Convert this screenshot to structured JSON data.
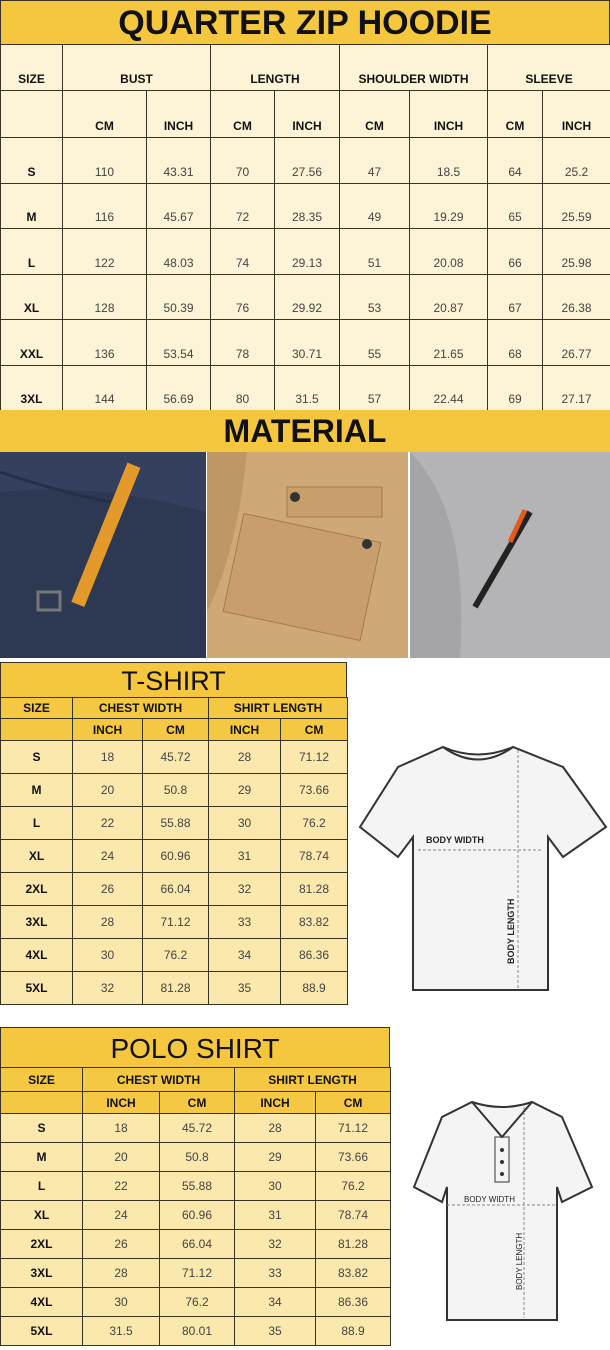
{
  "hoodie": {
    "title": "QUARTER ZIP HOODIE",
    "groups": [
      "SIZE",
      "BUST",
      "LENGTH",
      "SHOULDER WIDTH",
      "SLEEVE"
    ],
    "units": [
      "CM",
      "INCH",
      "CM",
      "INCH",
      "CM",
      "INCH",
      "CM",
      "INCH"
    ],
    "rows": [
      [
        "S",
        "110",
        "43.31",
        "70",
        "27.56",
        "47",
        "18.5",
        "64",
        "25.2"
      ],
      [
        "M",
        "116",
        "45.67",
        "72",
        "28.35",
        "49",
        "19.29",
        "65",
        "25.59"
      ],
      [
        "L",
        "122",
        "48.03",
        "74",
        "29.13",
        "51",
        "20.08",
        "66",
        "25.98"
      ],
      [
        "XL",
        "128",
        "50.39",
        "76",
        "29.92",
        "53",
        "20.87",
        "67",
        "26.38"
      ],
      [
        "XXL",
        "136",
        "53.54",
        "78",
        "30.71",
        "55",
        "21.65",
        "68",
        "26.77"
      ],
      [
        "3XL",
        "144",
        "56.69",
        "80",
        "31.5",
        "57",
        "22.44",
        "69",
        "27.17"
      ]
    ]
  },
  "material": {
    "title": "MATERIAL",
    "colors": {
      "navy": "#34405e",
      "khaki": "#cfa878",
      "gray": "#b4b4b6",
      "orange": "#e49a2a"
    }
  },
  "tshirt": {
    "title": "T-SHIRT",
    "groups": [
      "SIZE",
      "CHEST WIDTH",
      "SHIRT LENGTH"
    ],
    "units": [
      "INCH",
      "CM",
      "INCH",
      "CM"
    ],
    "rows": [
      [
        "S",
        "18",
        "45.72",
        "28",
        "71.12"
      ],
      [
        "M",
        "20",
        "50.8",
        "29",
        "73.66"
      ],
      [
        "L",
        "22",
        "55.88",
        "30",
        "76.2"
      ],
      [
        "XL",
        "24",
        "60.96",
        "31",
        "78.74"
      ],
      [
        "2XL",
        "26",
        "66.04",
        "32",
        "81.28"
      ],
      [
        "3XL",
        "28",
        "71.12",
        "33",
        "83.82"
      ],
      [
        "4XL",
        "30",
        "76.2",
        "34",
        "86.36"
      ],
      [
        "5XL",
        "32",
        "81.28",
        "35",
        "88.9"
      ]
    ],
    "diagram": {
      "width_label": "BODY WIDTH",
      "length_label": "BODY LENGTH"
    }
  },
  "polo": {
    "title": "POLO SHIRT",
    "groups": [
      "SIZE",
      "CHEST WIDTH",
      "SHIRT LENGTH"
    ],
    "units": [
      "INCH",
      "CM",
      "INCH",
      "CM"
    ],
    "rows": [
      [
        "S",
        "18",
        "45.72",
        "28",
        "71.12"
      ],
      [
        "M",
        "20",
        "50.8",
        "29",
        "73.66"
      ],
      [
        "L",
        "22",
        "55.88",
        "30",
        "76.2"
      ],
      [
        "XL",
        "24",
        "60.96",
        "31",
        "78.74"
      ],
      [
        "2XL",
        "26",
        "66.04",
        "32",
        "81.28"
      ],
      [
        "3XL",
        "28",
        "71.12",
        "33",
        "83.82"
      ],
      [
        "4XL",
        "30",
        "76.2",
        "34",
        "86.36"
      ],
      [
        "5XL",
        "31.5",
        "80.01",
        "35",
        "88.9"
      ]
    ],
    "diagram": {
      "width_label": "BODY WIDTH",
      "length_label": "BODY LENGTH"
    }
  }
}
